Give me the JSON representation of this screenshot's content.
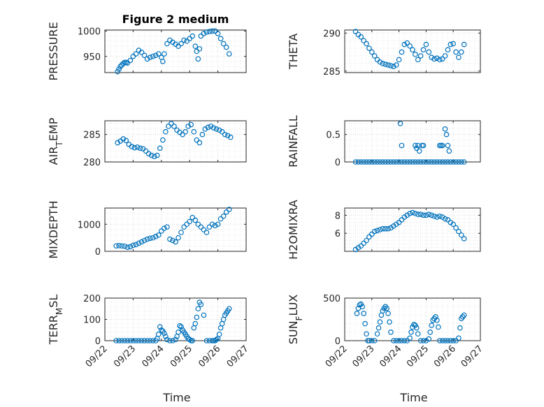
{
  "figure_title": "Figure 2 medium",
  "colors": {
    "marker": "#0072bd",
    "axes": "#262626",
    "grid": "#dcdcdc"
  },
  "chart_data": [
    {
      "type": "scatter",
      "ylabel": "PRESSURE",
      "title": "Figure 2 medium",
      "xlim": [
        "09/22",
        "09/27"
      ],
      "ylim": [
        918,
        1002
      ],
      "yticks": [
        950,
        1000
      ],
      "yticklabels": [
        "950",
        "1000"
      ],
      "xticklabels": [],
      "xlabel": "",
      "x": [
        22.45,
        22.5,
        22.55,
        22.6,
        22.65,
        22.7,
        22.75,
        22.8,
        22.9,
        23.0,
        23.1,
        23.2,
        23.3,
        23.4,
        23.5,
        23.6,
        23.7,
        23.8,
        23.9,
        24.0,
        24.05,
        24.1,
        24.2,
        24.3,
        24.4,
        24.5,
        24.6,
        24.7,
        24.8,
        24.9,
        25.0,
        25.1,
        25.2,
        25.25,
        25.3,
        25.35,
        25.4,
        25.5,
        25.6,
        25.7,
        25.8,
        25.9,
        26.0,
        26.1,
        26.2,
        26.3,
        26.4
      ],
      "y": [
        920,
        925,
        930,
        933,
        936,
        938,
        938,
        937,
        942,
        950,
        955,
        962,
        958,
        952,
        945,
        948,
        950,
        952,
        955,
        948,
        940,
        955,
        975,
        982,
        978,
        974,
        970,
        975,
        982,
        980,
        985,
        990,
        970,
        960,
        945,
        965,
        990,
        995,
        998,
        999,
        1000,
        1000,
        995,
        985,
        975,
        968,
        955
      ]
    },
    {
      "type": "scatter",
      "ylabel": "THETA",
      "xlim": [
        "09/22",
        "09/27"
      ],
      "ylim": [
        284.8,
        290.4
      ],
      "yticks": [
        285,
        290
      ],
      "yticklabels": [
        "285",
        "290"
      ],
      "xticklabels": [],
      "xlabel": "",
      "x": [
        22.4,
        22.5,
        22.6,
        22.7,
        22.8,
        22.9,
        23.0,
        23.1,
        23.2,
        23.3,
        23.4,
        23.5,
        23.6,
        23.7,
        23.8,
        23.9,
        24.0,
        24.1,
        24.2,
        24.3,
        24.4,
        24.5,
        24.6,
        24.7,
        24.8,
        24.9,
        25.0,
        25.1,
        25.2,
        25.3,
        25.4,
        25.5,
        25.6,
        25.7,
        25.8,
        25.9,
        26.0,
        26.1,
        26.2,
        26.3,
        26.4
      ],
      "y": [
        290.2,
        289.8,
        289.5,
        289.0,
        288.6,
        288.0,
        287.5,
        287.0,
        286.5,
        286.2,
        286.0,
        285.9,
        285.8,
        285.7,
        285.6,
        285.8,
        286.5,
        287.5,
        288.5,
        288.7,
        288.3,
        287.8,
        287.2,
        286.5,
        287.0,
        287.8,
        288.5,
        287.5,
        286.8,
        286.6,
        286.7,
        286.5,
        286.6,
        287.0,
        287.8,
        288.5,
        288.6,
        287.5,
        286.8,
        287.5,
        288.5
      ]
    },
    {
      "type": "scatter",
      "ylabel": "AIR_TEMP",
      "xlim": [
        "09/22",
        "09/27"
      ],
      "ylim": [
        280,
        287.5
      ],
      "yticks": [
        280,
        285
      ],
      "yticklabels": [
        "280",
        "285"
      ],
      "xticklabels": [],
      "xlabel": "",
      "x": [
        22.45,
        22.55,
        22.65,
        22.75,
        22.85,
        22.95,
        23.05,
        23.15,
        23.25,
        23.35,
        23.45,
        23.55,
        23.65,
        23.75,
        23.85,
        23.95,
        24.05,
        24.15,
        24.25,
        24.35,
        24.45,
        24.55,
        24.65,
        24.75,
        24.85,
        24.95,
        25.05,
        25.15,
        25.25,
        25.35,
        25.45,
        25.55,
        25.65,
        25.75,
        25.85,
        25.95,
        26.05,
        26.15,
        26.25,
        26.35,
        26.45
      ],
      "y": [
        283.5,
        283.8,
        284.2,
        283.9,
        283.2,
        282.8,
        282.6,
        282.7,
        282.5,
        282.4,
        282.0,
        281.5,
        281.2,
        281.0,
        281.2,
        282.5,
        284.0,
        285.5,
        286.5,
        287.0,
        286.5,
        285.8,
        285.4,
        285.0,
        285.5,
        286.5,
        286.8,
        285.5,
        284.0,
        283.5,
        285.0,
        286.0,
        286.3,
        286.5,
        286.2,
        286.0,
        285.8,
        285.5,
        285.0,
        284.8,
        284.5
      ]
    },
    {
      "type": "scatter",
      "ylabel": "RAINFALL",
      "xlim": [
        "09/22",
        "09/27"
      ],
      "ylim": [
        0,
        0.75
      ],
      "yticks": [
        0,
        0.5
      ],
      "yticklabels": [
        "0",
        "0.5"
      ],
      "xticklabels": [],
      "xlabel": "",
      "x": [
        22.4,
        22.5,
        22.6,
        22.7,
        22.8,
        22.9,
        23.0,
        23.1,
        23.2,
        23.3,
        23.4,
        23.5,
        23.6,
        23.7,
        23.8,
        23.9,
        24.0,
        24.1,
        24.2,
        24.3,
        24.4,
        24.5,
        24.6,
        24.7,
        24.8,
        24.9,
        25.0,
        25.1,
        25.2,
        25.3,
        25.4,
        25.5,
        25.6,
        25.7,
        25.8,
        25.9,
        26.0,
        26.1,
        26.2,
        26.3,
        26.4,
        24.05,
        24.1,
        24.6,
        24.65,
        24.7,
        24.75,
        24.85,
        24.9,
        25.5,
        25.55,
        25.6,
        25.7,
        25.75,
        25.8,
        25.85
      ],
      "y": [
        0,
        0,
        0,
        0,
        0,
        0,
        0,
        0,
        0,
        0,
        0,
        0,
        0,
        0,
        0,
        0,
        0,
        0,
        0,
        0,
        0,
        0,
        0,
        0,
        0,
        0,
        0,
        0,
        0,
        0,
        0,
        0,
        0,
        0,
        0,
        0,
        0,
        0,
        0,
        0,
        0,
        0.7,
        0.3,
        0.3,
        0.25,
        0.3,
        0.2,
        0.3,
        0.3,
        0.3,
        0.3,
        0.3,
        0.6,
        0.5,
        0.3,
        0.2
      ]
    },
    {
      "type": "scatter",
      "ylabel": "MIXDEPTH",
      "xlim": [
        "09/22",
        "09/27"
      ],
      "ylim": [
        0,
        1600
      ],
      "yticks": [
        0,
        1000
      ],
      "yticklabels": [
        "0",
        "1000"
      ],
      "xticklabels": [],
      "xlabel": "",
      "x": [
        22.4,
        22.5,
        22.6,
        22.7,
        22.8,
        22.9,
        23.0,
        23.1,
        23.2,
        23.3,
        23.4,
        23.5,
        23.6,
        23.7,
        23.8,
        23.9,
        24.0,
        24.1,
        24.2,
        24.3,
        24.4,
        24.5,
        24.6,
        24.7,
        24.8,
        24.9,
        25.0,
        25.1,
        25.2,
        25.3,
        25.4,
        25.5,
        25.6,
        25.7,
        25.8,
        25.9,
        26.0,
        26.1,
        26.2,
        26.3,
        26.4
      ],
      "y": [
        200,
        210,
        200,
        190,
        150,
        170,
        220,
        250,
        300,
        350,
        400,
        450,
        480,
        500,
        550,
        600,
        750,
        850,
        900,
        450,
        400,
        350,
        500,
        700,
        900,
        1000,
        1100,
        1250,
        1150,
        1000,
        900,
        800,
        700,
        900,
        1000,
        950,
        1000,
        1200,
        1300,
        1450,
        1550
      ]
    },
    {
      "type": "scatter",
      "ylabel": "H2OMIXRA",
      "xlim": [
        "09/22",
        "09/27"
      ],
      "ylim": [
        4,
        8.8
      ],
      "yticks": [
        6,
        8
      ],
      "yticklabels": [
        "6",
        "8"
      ],
      "xticklabels": [],
      "xlabel": "",
      "x": [
        22.4,
        22.5,
        22.6,
        22.7,
        22.8,
        22.9,
        23.0,
        23.1,
        23.2,
        23.3,
        23.4,
        23.5,
        23.6,
        23.7,
        23.8,
        23.9,
        24.0,
        24.1,
        24.2,
        24.3,
        24.4,
        24.5,
        24.6,
        24.7,
        24.8,
        24.9,
        25.0,
        25.1,
        25.2,
        25.3,
        25.4,
        25.5,
        25.6,
        25.7,
        25.8,
        25.9,
        26.0,
        26.1,
        26.2,
        26.3,
        26.4
      ],
      "y": [
        4.2,
        4.4,
        4.6,
        4.9,
        5.2,
        5.6,
        5.9,
        6.2,
        6.3,
        6.4,
        6.5,
        6.5,
        6.5,
        6.6,
        6.8,
        7.0,
        7.2,
        7.5,
        7.8,
        8.0,
        8.2,
        8.3,
        8.2,
        8.1,
        8.1,
        8.0,
        8.0,
        8.1,
        8.0,
        7.9,
        7.8,
        7.9,
        7.8,
        7.6,
        7.5,
        7.2,
        7.0,
        6.6,
        6.2,
        5.8,
        5.4
      ]
    },
    {
      "type": "scatter",
      "ylabel": "TERR_MSL",
      "xlim": [
        "09/22",
        "09/27"
      ],
      "ylim": [
        0,
        200
      ],
      "yticks": [
        0,
        100,
        200
      ],
      "yticklabels": [
        "0",
        "100",
        "200"
      ],
      "xticks": [
        "09/22",
        "09/23",
        "09/24",
        "09/25",
        "09/26",
        "09/27"
      ],
      "xticklabels": [
        "09/22",
        "09/23",
        "09/24",
        "09/25",
        "09/26",
        "09/27"
      ],
      "xlabel": "Time",
      "x": [
        22.4,
        22.5,
        22.6,
        22.7,
        22.8,
        22.9,
        23.0,
        23.1,
        23.2,
        23.3,
        23.4,
        23.5,
        23.6,
        23.7,
        23.8,
        23.85,
        23.9,
        23.95,
        24.0,
        24.05,
        24.1,
        24.15,
        24.2,
        24.3,
        24.4,
        24.5,
        24.55,
        24.6,
        24.65,
        24.7,
        24.75,
        24.8,
        24.85,
        24.9,
        24.95,
        25.0,
        25.05,
        25.1,
        25.15,
        25.2,
        25.25,
        25.3,
        25.35,
        25.4,
        25.5,
        25.6,
        25.7,
        25.8,
        25.85,
        25.9,
        25.95,
        26.0,
        26.05,
        26.1,
        26.15,
        26.2,
        26.25,
        26.3,
        26.35,
        26.4
      ],
      "y": [
        0,
        0,
        0,
        0,
        0,
        0,
        0,
        0,
        0,
        0,
        0,
        0,
        0,
        0,
        0,
        10,
        30,
        65,
        50,
        45,
        35,
        20,
        5,
        0,
        0,
        5,
        20,
        40,
        70,
        65,
        50,
        40,
        30,
        20,
        10,
        5,
        0,
        0,
        60,
        80,
        110,
        150,
        180,
        170,
        120,
        0,
        0,
        0,
        0,
        0,
        5,
        10,
        30,
        60,
        80,
        100,
        120,
        130,
        140,
        150
      ]
    },
    {
      "type": "scatter",
      "ylabel": "SUN_FLUX",
      "xlim": [
        "09/22",
        "09/27"
      ],
      "ylim": [
        0,
        500
      ],
      "yticks": [
        0,
        500
      ],
      "yticklabels": [
        "0",
        "500"
      ],
      "xticks": [
        "09/22",
        "09/23",
        "09/24",
        "09/25",
        "09/26",
        "09/27"
      ],
      "xticklabels": [
        "09/22",
        "09/23",
        "09/24",
        "09/25",
        "09/26",
        "09/27"
      ],
      "xlabel": "Time",
      "x": [
        22.45,
        22.5,
        22.55,
        22.6,
        22.65,
        22.7,
        22.75,
        22.8,
        22.85,
        22.9,
        23.0,
        23.1,
        23.2,
        23.25,
        23.3,
        23.35,
        23.4,
        23.45,
        23.5,
        23.55,
        23.6,
        23.65,
        23.7,
        23.8,
        23.9,
        24.0,
        24.1,
        24.2,
        24.3,
        24.4,
        24.45,
        24.5,
        24.55,
        24.6,
        24.65,
        24.7,
        24.8,
        24.9,
        25.0,
        25.1,
        25.15,
        25.2,
        25.25,
        25.3,
        25.35,
        25.4,
        25.45,
        25.5,
        25.6,
        25.7,
        25.8,
        25.9,
        26.0,
        26.1,
        26.2,
        26.25,
        26.3,
        26.35,
        26.4
      ],
      "y": [
        320,
        380,
        420,
        430,
        400,
        320,
        200,
        80,
        0,
        0,
        0,
        0,
        80,
        150,
        220,
        300,
        350,
        380,
        400,
        380,
        320,
        220,
        100,
        0,
        0,
        0,
        0,
        0,
        0,
        30,
        100,
        160,
        190,
        180,
        150,
        80,
        0,
        0,
        0,
        20,
        100,
        180,
        240,
        260,
        280,
        240,
        160,
        0,
        0,
        0,
        0,
        0,
        0,
        0,
        30,
        150,
        260,
        280,
        300
      ]
    }
  ]
}
